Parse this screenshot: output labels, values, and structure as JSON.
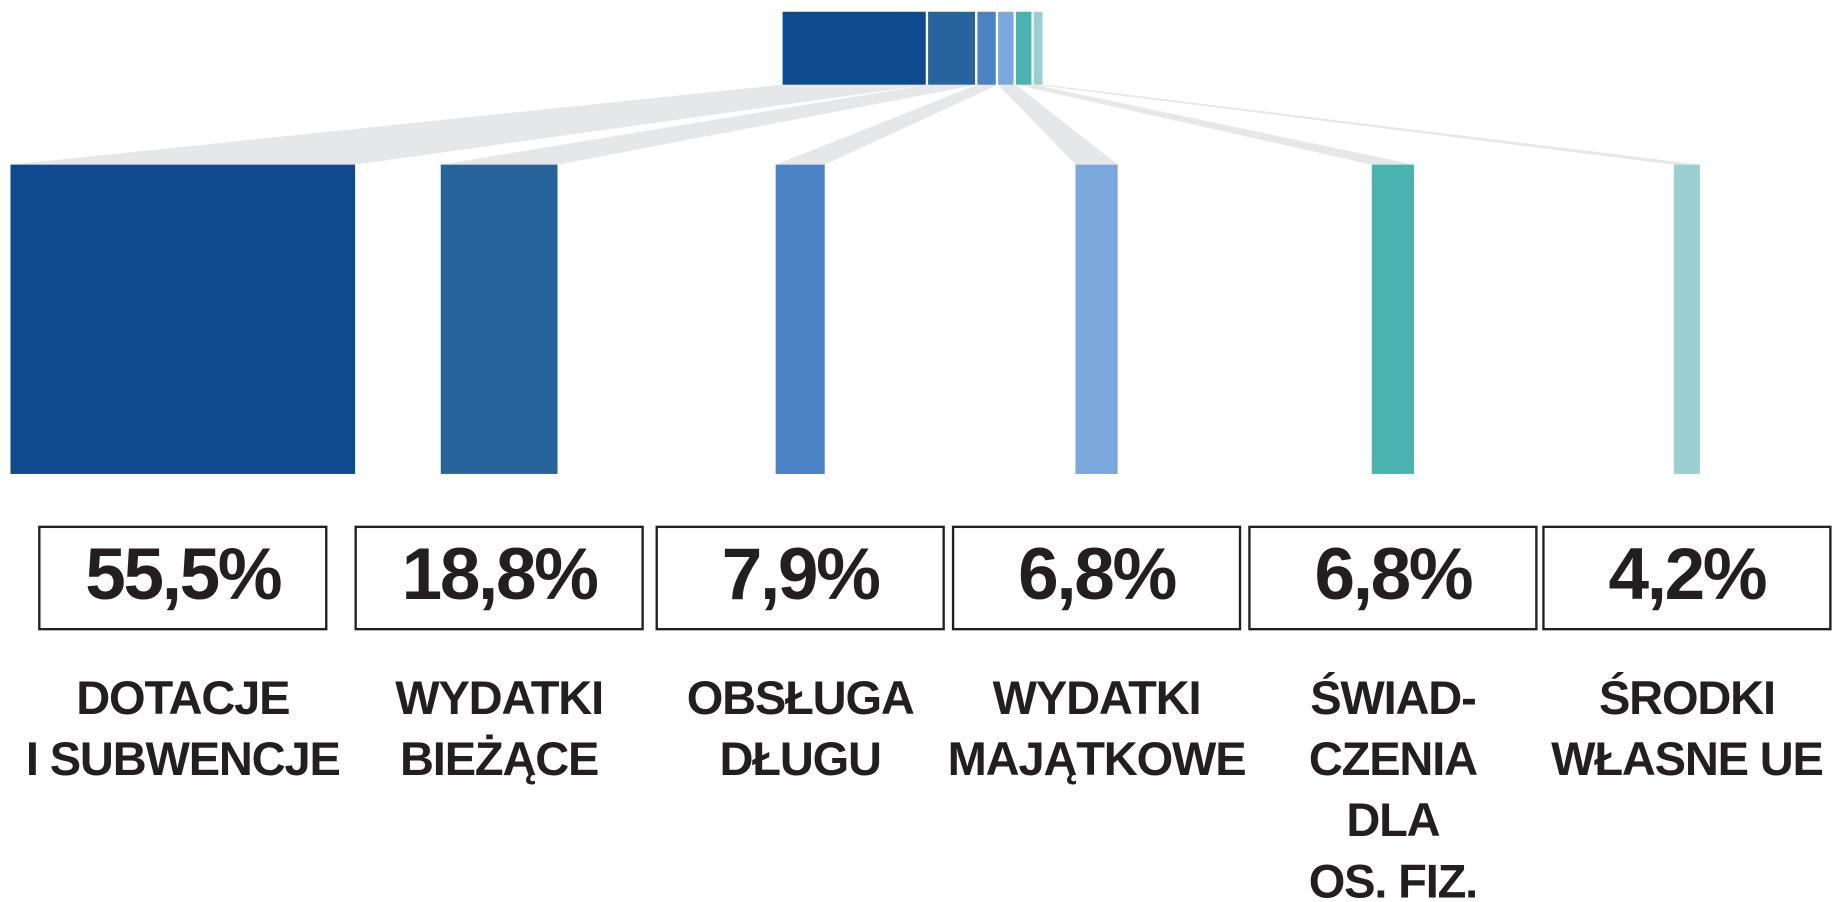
{
  "chart_data": {
    "type": "bar",
    "categories": [
      "DOTACJE\nI SUBWENCJE",
      "WYDATKI\nBIEŻĄCE",
      "OBSŁUGA\nDŁUGU",
      "WYDATKI\nMAJĄTKOWE",
      "ŚWIAD-\nCZENIA\nDLA\nOS. FIZ.",
      "ŚRODKI\nWŁASNE UE"
    ],
    "values": [
      55.5,
      18.8,
      7.9,
      6.8,
      6.8,
      4.2
    ],
    "value_labels": [
      "55,5%",
      "18,8%",
      "7,9%",
      "6,8%",
      "6,8%",
      "4,2%"
    ],
    "colors": [
      "#0f4a8f",
      "#27649c",
      "#4a82c3",
      "#7aa7dc",
      "#4ab3b0",
      "#9bd0d3"
    ]
  }
}
